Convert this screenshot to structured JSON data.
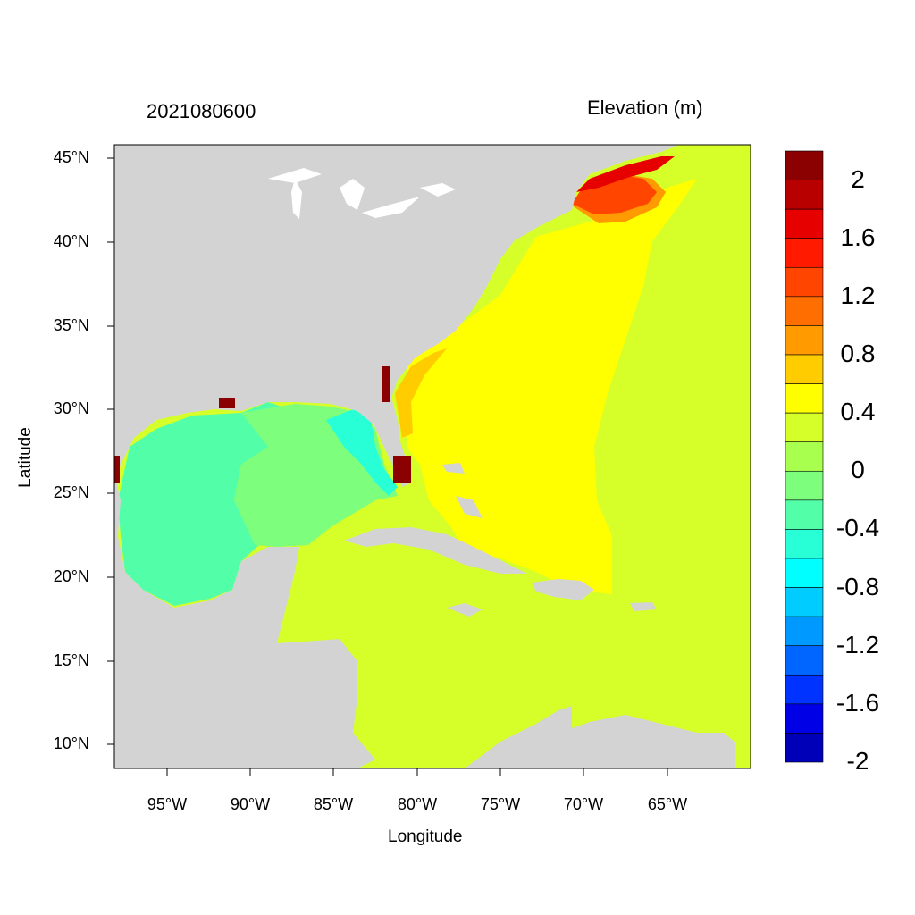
{
  "map": {
    "date_label": "2021080600",
    "variable_label": "Elevation (m)",
    "xlabel": "Longitude",
    "ylabel": "Latitude",
    "lon_ticks": [
      "95°W",
      "90°W",
      "85°W",
      "80°W",
      "75°W",
      "70°W",
      "65°W"
    ],
    "lat_ticks": [
      "45°N",
      "40°N",
      "35°N",
      "30°N",
      "25°N",
      "20°N",
      "15°N",
      "10°N"
    ],
    "land_color": "#d3d3d3",
    "lakes_color": "#ffffff"
  },
  "colorbar": {
    "labels": [
      "2",
      "1.6",
      "1.2",
      "0.8",
      "0.4",
      "0",
      "-0.4",
      "-0.8",
      "-1.2",
      "-1.6",
      "-2"
    ],
    "colors": [
      "#8b0000",
      "#b90000",
      "#e60000",
      "#ff1a00",
      "#ff4500",
      "#ff6e00",
      "#ff9a00",
      "#ffcc00",
      "#ffff00",
      "#d6ff29",
      "#a8ff4d",
      "#7dff7d",
      "#52ffa8",
      "#29ffd6",
      "#00ffff",
      "#00ccff",
      "#0099ff",
      "#0066ff",
      "#0033ff",
      "#0000e6",
      "#0000b9"
    ]
  }
}
